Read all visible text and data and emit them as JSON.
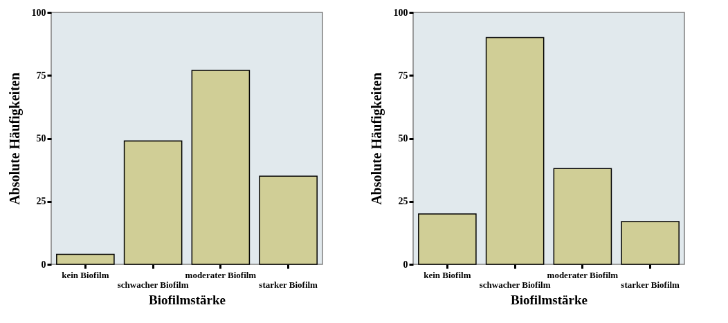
{
  "chart_data": [
    {
      "type": "bar",
      "categories": [
        "kein Biofilm",
        "schwacher Biofilm",
        "moderater Biofilm",
        "starker Biofilm"
      ],
      "values": [
        4,
        49,
        77,
        35
      ],
      "color": "#d0ce96",
      "ylim": [
        0,
        100
      ],
      "yticks": [
        0,
        25,
        50,
        75,
        100
      ],
      "xlabel": "Biofilmstärke",
      "ylabel": "Absolute Häufigkeiten"
    },
    {
      "type": "bar",
      "categories": [
        "kein Biofilm",
        "schwacher Biofilm",
        "moderater Biofilm",
        "starker Biofilm"
      ],
      "values": [
        20,
        90,
        38,
        17
      ],
      "color": "#d0ce96",
      "ylim": [
        0,
        100
      ],
      "yticks": [
        0,
        25,
        50,
        75,
        100
      ],
      "xlabel": "Biofilmstärke",
      "ylabel": "Absolute Häufigkeiten"
    }
  ]
}
